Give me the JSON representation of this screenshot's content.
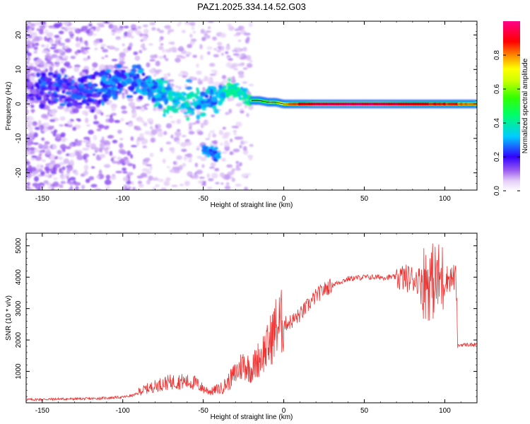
{
  "title": "PAZ1.2025.334.14.52.G03",
  "chart_data": [
    {
      "type": "heatmap",
      "name": "spectrogram",
      "xlabel": "Height of straight line (km)",
      "ylabel": "Frequency (Hz)",
      "xlim": [
        -160,
        120
      ],
      "ylim": [
        -25,
        24
      ],
      "xticks": [
        -150,
        -100,
        -50,
        0,
        50,
        100
      ],
      "yticks": [
        -20,
        -10,
        0,
        10,
        20
      ],
      "ridge": {
        "x": [
          -160,
          -150,
          -140,
          -130,
          -120,
          -110,
          -100,
          -90,
          -80,
          -70,
          -60,
          -50,
          -40,
          -35,
          -30,
          -25,
          -20,
          -15,
          -10,
          -5,
          0,
          10,
          20,
          40,
          60,
          80,
          100,
          120
        ],
        "freq": [
          3,
          4,
          5,
          3,
          4,
          6,
          7,
          6,
          4,
          2,
          1,
          1,
          2,
          4,
          4,
          3,
          1,
          1,
          0.5,
          0.5,
          0,
          0,
          0,
          0,
          0,
          0,
          0,
          0
        ],
        "amplitude": [
          0.1,
          0.2,
          0.2,
          0.2,
          0.2,
          0.25,
          0.25,
          0.25,
          0.3,
          0.35,
          0.35,
          0.3,
          0.3,
          0.4,
          0.4,
          0.35,
          0.45,
          0.5,
          0.55,
          0.6,
          0.7,
          0.85,
          0.95,
          0.95,
          0.95,
          0.9,
          0.85,
          0.75
        ]
      },
      "lower_branch": {
        "x": [
          -50,
          -45,
          -40
        ],
        "freq": [
          -13,
          -14,
          -15
        ]
      },
      "colorbar": {
        "label": "Normalized spectral amplitude",
        "range": [
          0,
          1
        ],
        "ticks": [
          0.0,
          0.2,
          0.4,
          0.6,
          0.8
        ]
      }
    },
    {
      "type": "line",
      "name": "snr",
      "xlabel": "Height of straight line (km)",
      "ylabel": "SNR (10 * v/v)",
      "xlim": [
        -160,
        120
      ],
      "ylim": [
        0,
        5400
      ],
      "xticks": [
        -150,
        -100,
        -50,
        0,
        50,
        100
      ],
      "yticks": [
        1000,
        2000,
        3000,
        4000,
        5000
      ],
      "color": "#ee3333",
      "series": [
        {
          "name": "SNR",
          "x": [
            -160,
            -140,
            -120,
            -100,
            -95,
            -90,
            -85,
            -80,
            -75,
            -70,
            -65,
            -60,
            -55,
            -50,
            -45,
            -40,
            -35,
            -30,
            -25,
            -20,
            -15,
            -10,
            -5,
            0,
            5,
            10,
            15,
            20,
            25,
            30,
            35,
            40,
            50,
            60,
            70,
            80,
            85,
            90,
            95,
            100,
            107,
            108,
            110,
            115,
            120
          ],
          "y": [
            100,
            120,
            130,
            180,
            220,
            300,
            380,
            450,
            520,
            560,
            580,
            560,
            540,
            380,
            300,
            400,
            600,
            900,
            1200,
            1000,
            1400,
            1700,
            2300,
            2500,
            2600,
            2800,
            3100,
            3400,
            3600,
            3750,
            3850,
            3950,
            4000,
            4000,
            4000,
            3950,
            3900,
            3850,
            3900,
            3950,
            4000,
            1800,
            1850,
            1850,
            1850
          ]
        }
      ]
    }
  ]
}
